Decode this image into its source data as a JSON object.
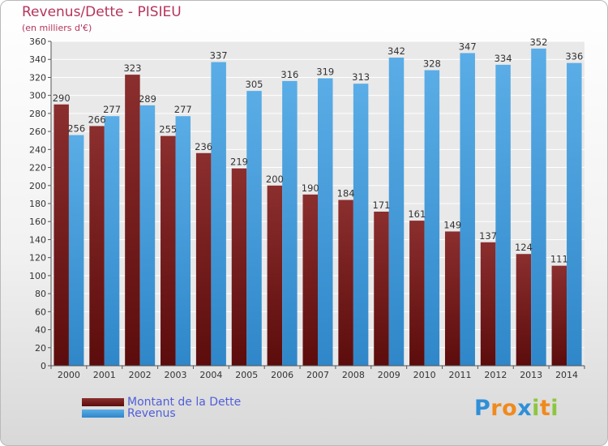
{
  "header": {
    "title": "Revenus/Dette - PISIEU",
    "subtitle": "(en milliers d'€)"
  },
  "colors": {
    "dette_top": "#8b2e2e",
    "dette_bottom": "#5c0c0c",
    "revenus_top": "#5aade6",
    "revenus_bottom": "#2f87c9",
    "title": "#b5345b",
    "legend_text": "#4f5fd9"
  },
  "chart_data": {
    "type": "bar",
    "title": "Revenus/Dette - PISIEU",
    "subtitle": "(en milliers d'€)",
    "xlabel": "",
    "ylabel": "",
    "ylim": [
      0,
      360
    ],
    "ytick_step": 20,
    "grid": true,
    "legend_position": "bottom-left",
    "categories": [
      "2000",
      "2001",
      "2002",
      "2003",
      "2004",
      "2005",
      "2006",
      "2007",
      "2008",
      "2009",
      "2010",
      "2011",
      "2012",
      "2013",
      "2014"
    ],
    "series": [
      {
        "name": "Montant de la Dette",
        "values": [
          290,
          266,
          323,
          255,
          236,
          219,
          200,
          190,
          184,
          171,
          161,
          149,
          137,
          124,
          111
        ]
      },
      {
        "name": "Revenus",
        "values": [
          256,
          277,
          289,
          277,
          337,
          305,
          316,
          319,
          313,
          342,
          328,
          347,
          334,
          352,
          336
        ]
      }
    ]
  },
  "legend": {
    "items": [
      {
        "label": "Montant de la Dette"
      },
      {
        "label": "Revenus"
      }
    ]
  },
  "logo": {
    "text": "Proxiti",
    "letters": [
      "P",
      "r",
      "o",
      "x",
      "i",
      "t",
      "i"
    ],
    "letter_colors": [
      "#2f8fd8",
      "#f08a1d",
      "#f08a1d",
      "#2f8fd8",
      "#8cc63f",
      "#f08a1d",
      "#8cc63f"
    ]
  }
}
